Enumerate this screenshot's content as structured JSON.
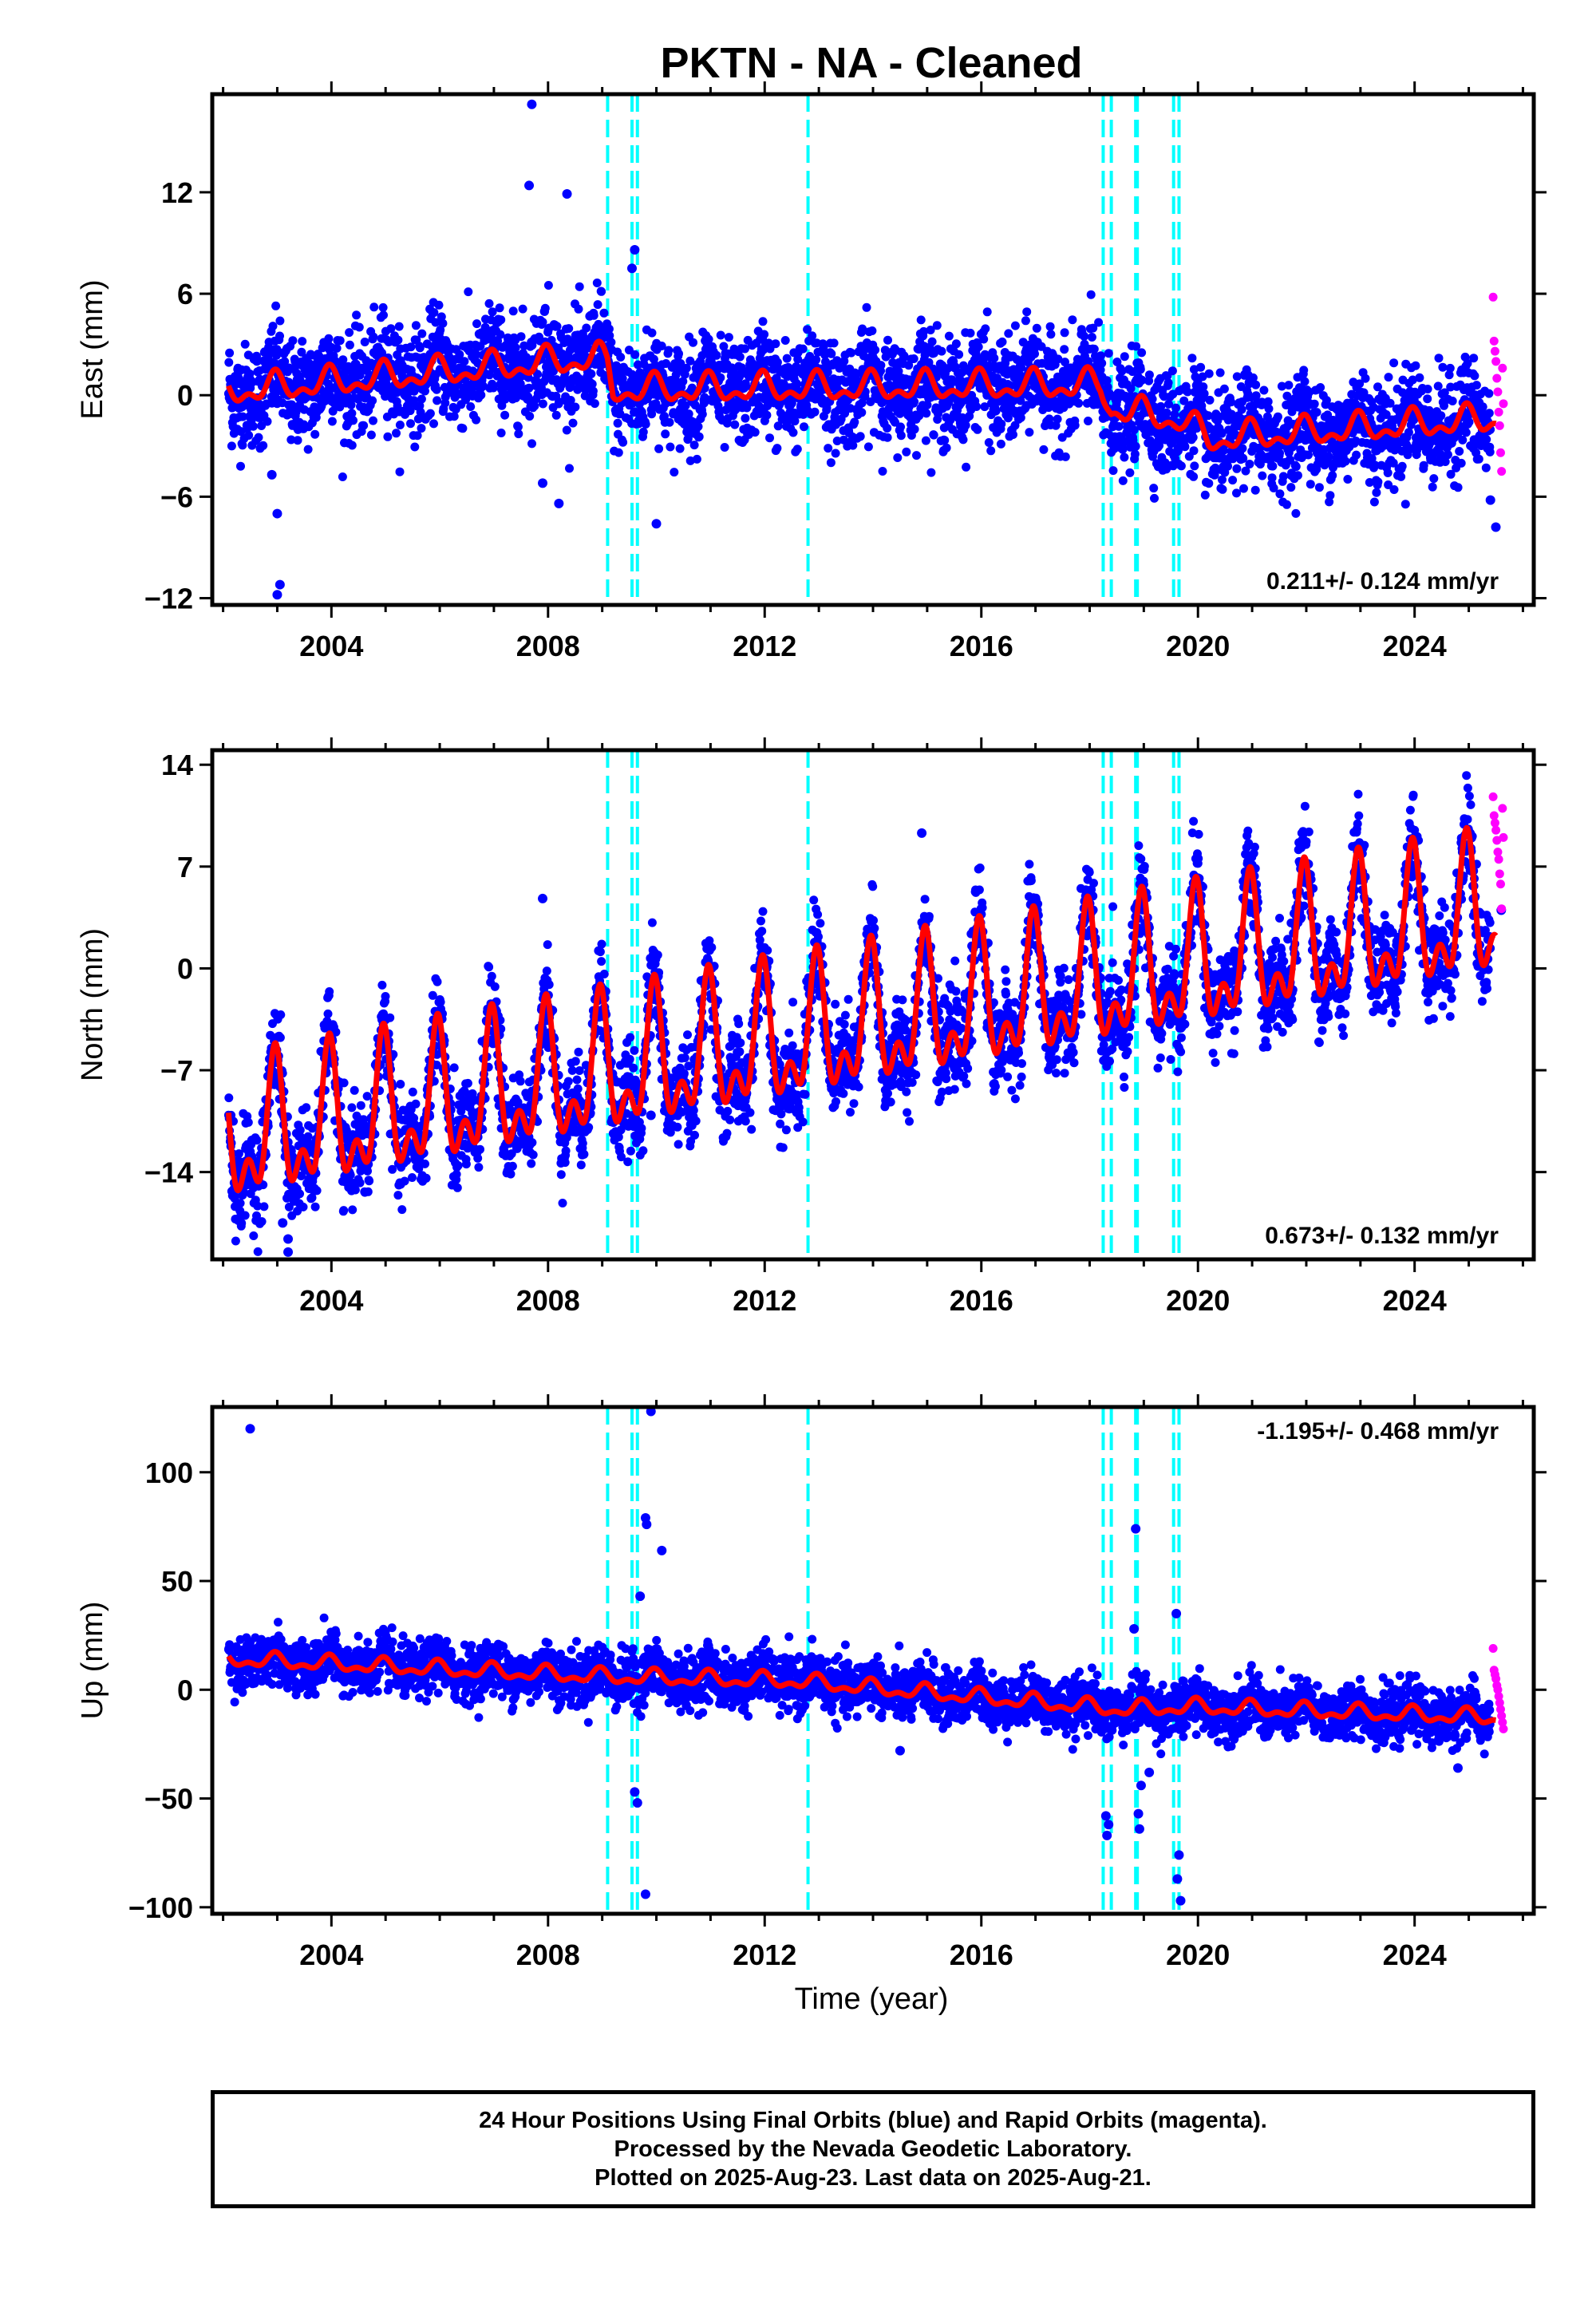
{
  "colors": {
    "final_points": "#0000ff",
    "rapid_points": "#ff00ff",
    "model_line": "#ff0000",
    "event_lines": "#00ffff",
    "frame": "#000000"
  },
  "chart_data": {
    "type": "scatter",
    "title": "PKTN  - NA - Cleaned",
    "xlabel": "Time (year)",
    "xlim": [
      2001.8,
      2026.2
    ],
    "x_ticks": [
      "2004",
      "2008",
      "2012",
      "2016",
      "2020",
      "2024"
    ],
    "event_lines_year": [
      2009.1,
      2009.55,
      2009.65,
      2012.8,
      2018.25,
      2018.4,
      2018.85,
      2018.88,
      2019.55,
      2019.65
    ],
    "final_data_years": [
      2002.1,
      2025.4
    ],
    "rapid_data_years": [
      2025.45,
      2025.64
    ],
    "panels": [
      {
        "id": "east",
        "ylabel": "East (mm)",
        "ylim": [
          -12.4,
          17.8
        ],
        "y_ticks": [
          "12",
          "6",
          "0",
          "−6",
          "−12"
        ],
        "rate_label": "0.211+/- 0.124 mm/yr",
        "rate_position": "bottom-right",
        "model_level": [
          [
            2002.1,
            0.2
          ],
          [
            2008.9,
            2.2
          ],
          [
            2009.1,
            1.8
          ],
          [
            2009.2,
            0.3
          ],
          [
            2018.2,
            0.6
          ],
          [
            2018.4,
            -0.8
          ],
          [
            2019.7,
            -1.5
          ],
          [
            2020.2,
            -2.6
          ],
          [
            2025.6,
            -1.4
          ]
        ],
        "seasonal_amplitude": 1.2,
        "scatter_sd": 1.5,
        "outliers": [
          {
            "x": 2003.0,
            "y": -11.8
          },
          {
            "x": 2003.05,
            "y": -11.2
          },
          {
            "x": 2003.0,
            "y": -7.0
          },
          {
            "x": 2002.9,
            "y": -4.7
          },
          {
            "x": 2007.7,
            "y": 17.2
          },
          {
            "x": 2007.65,
            "y": 12.4
          },
          {
            "x": 2008.35,
            "y": 11.9
          },
          {
            "x": 2008.2,
            "y": -6.4
          },
          {
            "x": 2007.9,
            "y": -5.2
          },
          {
            "x": 2009.6,
            "y": 8.6
          },
          {
            "x": 2009.55,
            "y": 7.5
          },
          {
            "x": 2010.0,
            "y": -7.6
          },
          {
            "x": 2025.5,
            "y": -7.8
          },
          {
            "x": 2025.4,
            "y": -6.2
          }
        ],
        "rapid_values": [
          5.8,
          3.2,
          2.6,
          2.0,
          1.0,
          0.2,
          -1.0,
          -1.8,
          -3.4,
          -4.5,
          1.6,
          -0.5
        ]
      },
      {
        "id": "north",
        "ylabel": "North (mm)",
        "ylim": [
          -20,
          15
        ],
        "y_ticks": [
          "14",
          "7",
          "0",
          "−7",
          "−14"
        ],
        "rate_label": "0.673+/- 0.132 mm/yr",
        "rate_position": "bottom-right",
        "model_level": [
          [
            2002.1,
            -12.0
          ],
          [
            2025.6,
            3.8
          ]
        ],
        "seasonal_amplitude": 7.0,
        "scatter_sd": 1.6,
        "outliers": [
          {
            "x": 2003.1,
            "y": -17.5
          },
          {
            "x": 2003.2,
            "y": -18.6
          },
          {
            "x": 2003.2,
            "y": -19.5
          },
          {
            "x": 2002.2,
            "y": -15.2
          },
          {
            "x": 2009.9,
            "y": -10.1
          },
          {
            "x": 2014.9,
            "y": 9.3
          },
          {
            "x": 2007.9,
            "y": 4.8
          },
          {
            "x": 2025.6,
            "y": 4.0
          }
        ],
        "rapid_values": [
          11.8,
          10.5,
          10.0,
          9.5,
          8.8,
          8.0,
          7.5,
          6.5,
          5.8,
          4.1,
          11.0,
          9.0
        ]
      },
      {
        "id": "up",
        "ylabel": "Up (mm)",
        "ylim": [
          -103,
          130
        ],
        "y_ticks": [
          "100",
          "50",
          "0",
          "−50",
          "−100"
        ],
        "rate_label": "-1.195+/- 0.468 mm/yr",
        "rate_position": "top-right",
        "model_level": [
          [
            2002.1,
            14.0
          ],
          [
            2009.0,
            6.0
          ],
          [
            2012.5,
            4.0
          ],
          [
            2018.5,
            -9.0
          ],
          [
            2020.0,
            -8.0
          ],
          [
            2025.6,
            -13.0
          ]
        ],
        "seasonal_amplitude": 5.0,
        "scatter_sd": 6.0,
        "outliers": [
          {
            "x": 2002.5,
            "y": 120
          },
          {
            "x": 2009.9,
            "y": 128
          },
          {
            "x": 2010.1,
            "y": 64
          },
          {
            "x": 2009.8,
            "y": 79
          },
          {
            "x": 2009.82,
            "y": 76
          },
          {
            "x": 2009.7,
            "y": 43
          },
          {
            "x": 2009.6,
            "y": -47
          },
          {
            "x": 2009.65,
            "y": -52
          },
          {
            "x": 2009.8,
            "y": -94
          },
          {
            "x": 2018.3,
            "y": -58
          },
          {
            "x": 2018.35,
            "y": -62
          },
          {
            "x": 2018.32,
            "y": -67
          },
          {
            "x": 2018.85,
            "y": 74
          },
          {
            "x": 2018.82,
            "y": 28
          },
          {
            "x": 2018.95,
            "y": -44
          },
          {
            "x": 2018.9,
            "y": -57
          },
          {
            "x": 2018.92,
            "y": -64
          },
          {
            "x": 2019.1,
            "y": -38
          },
          {
            "x": 2019.6,
            "y": 35
          },
          {
            "x": 2019.65,
            "y": -76
          },
          {
            "x": 2019.62,
            "y": -87
          },
          {
            "x": 2019.68,
            "y": -97
          },
          {
            "x": 2014.5,
            "y": -28
          },
          {
            "x": 2024.8,
            "y": -36
          }
        ],
        "rapid_values": [
          19,
          9,
          7,
          5,
          2,
          0,
          -3,
          -6,
          -9,
          -12,
          -15,
          -18
        ]
      }
    ]
  },
  "footer": {
    "line1": "24 Hour Positions Using Final Orbits (blue) and Rapid Orbits (magenta).",
    "line2": "Processed by the Nevada Geodetic Laboratory.",
    "line3": "Plotted on 2025-Aug-23. Last data on 2025-Aug-21."
  }
}
